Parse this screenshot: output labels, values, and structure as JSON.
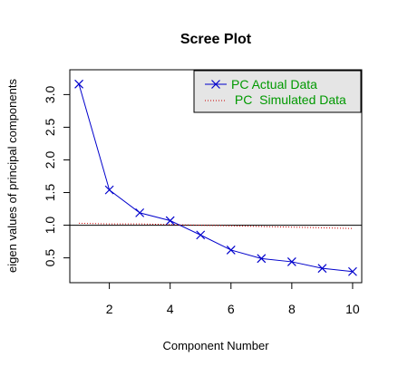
{
  "chart_data": {
    "type": "line",
    "title": "Scree Plot",
    "xlabel": "Component Number",
    "ylabel": "eigen values of principal components",
    "xlim": [
      0.7,
      10.3
    ],
    "ylim": [
      0.12,
      3.38
    ],
    "x_ticks": [
      2,
      4,
      6,
      8,
      10
    ],
    "y_ticks": [
      0.5,
      1.0,
      1.5,
      2.0,
      2.5,
      3.0
    ],
    "x_tick_labels": [
      "2",
      "4",
      "6",
      "8",
      "10"
    ],
    "y_tick_labels": [
      "0.5",
      "1.0",
      "1.5",
      "2.0",
      "2.5",
      "3.0"
    ],
    "reference_line_y": 1.0,
    "grid": false,
    "legend_position": "top-right",
    "legend_background": "#e5e5e5",
    "series": [
      {
        "name": "PC  Actual Data",
        "color": "#0000cc",
        "legend_text_color": "#009900",
        "marker": "x",
        "line_style": "solid",
        "x": [
          1,
          2,
          3,
          4,
          5,
          6,
          7,
          8,
          9,
          10
        ],
        "values": [
          3.16,
          1.54,
          1.19,
          1.07,
          0.85,
          0.62,
          0.49,
          0.44,
          0.34,
          0.29
        ]
      },
      {
        "name": " PC  Simulated Data",
        "color": "#cc0000",
        "legend_text_color": "#009900",
        "marker": "none",
        "line_style": "dotted",
        "x": [
          1,
          2,
          3,
          4,
          5,
          6,
          7,
          8,
          9,
          10
        ],
        "values": [
          1.03,
          1.02,
          1.02,
          1.01,
          1.0,
          0.99,
          0.98,
          0.97,
          0.96,
          0.95
        ]
      }
    ]
  }
}
